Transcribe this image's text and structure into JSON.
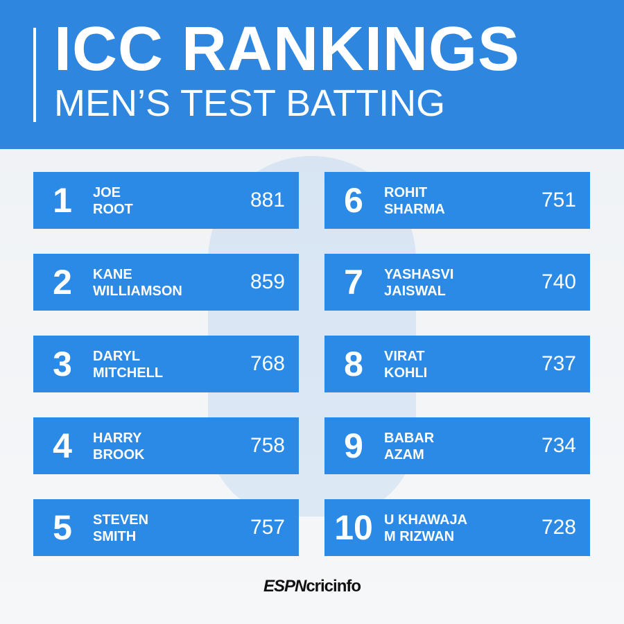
{
  "header": {
    "title": "ICC RANKINGS",
    "subtitle": "MEN’S TEST BATTING"
  },
  "rankings": [
    {
      "rank": "1",
      "name": [
        "JOE",
        "ROOT"
      ],
      "points": 881
    },
    {
      "rank": "2",
      "name": [
        "KANE",
        "WILLIAMSON"
      ],
      "points": 859
    },
    {
      "rank": "3",
      "name": [
        "DARYL",
        "MITCHELL"
      ],
      "points": 768
    },
    {
      "rank": "4",
      "name": [
        "HARRY",
        "BROOK"
      ],
      "points": 758
    },
    {
      "rank": "5",
      "name": [
        "STEVEN",
        "SMITH"
      ],
      "points": 757
    },
    {
      "rank": "6",
      "name": [
        "ROHIT",
        "SHARMA"
      ],
      "points": 751
    },
    {
      "rank": "7",
      "name": [
        "YASHASVI",
        "JAISWAL"
      ],
      "points": 740
    },
    {
      "rank": "8",
      "name": [
        "VIRAT",
        "KOHLI"
      ],
      "points": 737
    },
    {
      "rank": "9",
      "name": [
        "BABAR",
        "AZAM"
      ],
      "points": 734
    },
    {
      "rank": "10",
      "name": [
        "U KHAWAJA",
        "M RIZWAN"
      ],
      "points": 728
    }
  ],
  "footer": {
    "brand": "ESPN",
    "site": "cricinfo"
  }
}
